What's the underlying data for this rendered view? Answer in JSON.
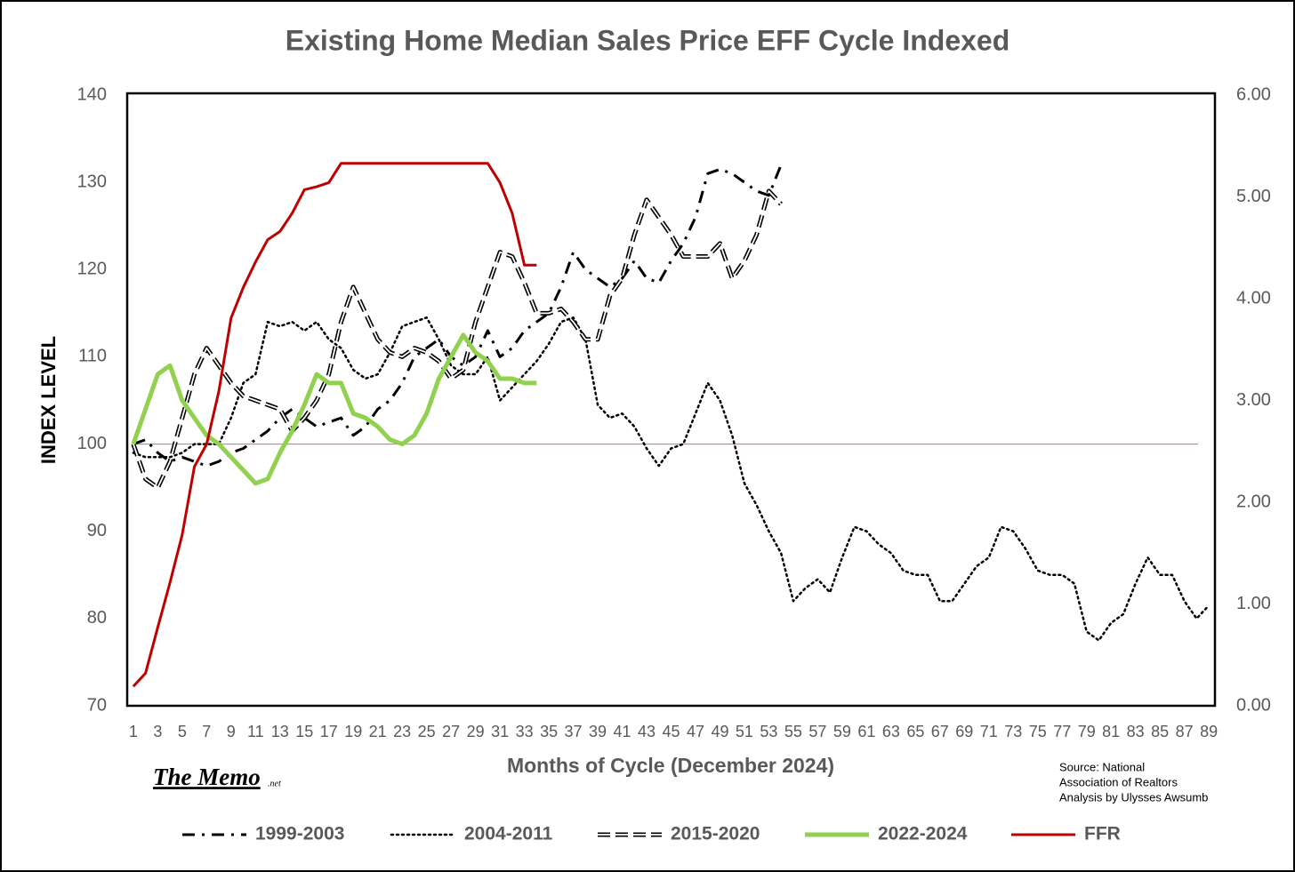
{
  "chart_data": {
    "type": "line",
    "title": "Existing Home Median Sales Price EFF Cycle Indexed",
    "xlabel": "Months of Cycle (December 2024)",
    "ylabel": "INDEX LEVEL",
    "x": [
      1,
      2,
      3,
      4,
      5,
      6,
      7,
      8,
      9,
      10,
      11,
      12,
      13,
      14,
      15,
      16,
      17,
      18,
      19,
      20,
      21,
      22,
      23,
      24,
      25,
      26,
      27,
      28,
      29,
      30,
      31,
      32,
      33,
      34,
      35,
      36,
      37,
      38,
      39,
      40,
      41,
      42,
      43,
      44,
      45,
      46,
      47,
      48,
      49,
      50,
      51,
      52,
      53,
      54,
      55,
      56,
      57,
      58,
      59,
      60,
      61,
      62,
      63,
      64,
      65,
      66,
      67,
      68,
      69,
      70,
      71,
      72,
      73,
      74,
      75,
      76,
      77,
      78,
      79,
      80,
      81,
      82,
      83,
      84,
      85,
      86,
      87,
      88,
      89
    ],
    "xlim": [
      0.5,
      89.5
    ],
    "xticks": [
      1,
      3,
      5,
      7,
      9,
      11,
      13,
      15,
      17,
      19,
      21,
      23,
      25,
      27,
      29,
      31,
      33,
      35,
      37,
      39,
      41,
      43,
      45,
      47,
      49,
      51,
      53,
      55,
      57,
      59,
      61,
      63,
      65,
      67,
      69,
      71,
      73,
      75,
      77,
      79,
      81,
      83,
      85,
      87,
      89
    ],
    "ylim": [
      70,
      140
    ],
    "yticks": [
      70,
      80,
      90,
      100,
      110,
      120,
      130,
      140
    ],
    "y2lim": [
      0,
      6
    ],
    "y2ticks": [
      {
        "value": 0,
        "label": "0.00"
      },
      {
        "value": 1,
        "label": "1.00"
      },
      {
        "value": 2,
        "label": "2.00"
      },
      {
        "value": 3,
        "label": "3.00"
      },
      {
        "value": 4,
        "label": "4.00"
      },
      {
        "value": 5,
        "label": "5.00"
      },
      {
        "value": 6,
        "label": "6.00"
      }
    ],
    "grid": false,
    "reference_line": {
      "value": 100,
      "color": "#e06666"
    },
    "legend": "bottom",
    "series": [
      {
        "name": "1999-2003",
        "color": "#000000",
        "style": "dashdot",
        "values": [
          100,
          100.5,
          99,
          98,
          98.5,
          98,
          97.5,
          98,
          99,
          99.5,
          100.5,
          101.5,
          103,
          104,
          103,
          102,
          102.5,
          103,
          101,
          102,
          104,
          105,
          107,
          110,
          111,
          112,
          110,
          109,
          110,
          113,
          110,
          111,
          113,
          114,
          115,
          118,
          122,
          120,
          119,
          118,
          119,
          121,
          119,
          118.5,
          121,
          123,
          126,
          131,
          131.5,
          131,
          130,
          129,
          128.5,
          132,
          null,
          null,
          null,
          null,
          null,
          null,
          null,
          null,
          null,
          null,
          null,
          null,
          null,
          null,
          null,
          null,
          null,
          null,
          null,
          null,
          null,
          null,
          null,
          null,
          null,
          null,
          null,
          null,
          null,
          null,
          null,
          null,
          null,
          null,
          null
        ]
      },
      {
        "name": "2004-2011",
        "color": "#000000",
        "style": "dotted",
        "values": [
          99,
          98.5,
          98.5,
          98.5,
          99,
          100,
          100,
          100,
          103,
          107,
          108,
          114,
          113.5,
          114,
          113,
          114,
          112,
          111,
          108.5,
          107.5,
          108,
          110.5,
          113.5,
          114,
          114.5,
          112,
          109,
          108,
          108,
          110,
          105,
          106.5,
          108,
          109.5,
          111.5,
          114,
          114.5,
          112,
          104.5,
          103,
          103.5,
          102,
          99.5,
          97.5,
          99.5,
          100,
          103.5,
          107,
          105,
          101,
          95.5,
          93,
          90,
          87.5,
          82,
          83.5,
          84.5,
          83,
          87,
          90.5,
          90,
          88.5,
          87.5,
          85.5,
          85,
          85,
          82,
          82,
          84,
          86,
          87,
          90.5,
          90,
          88,
          85.5,
          85,
          85,
          84,
          78.5,
          77.5,
          79.5,
          80.5,
          84,
          87,
          85,
          85,
          82,
          80,
          81.5
        ]
      },
      {
        "name": "2015-2020",
        "color": "#000000",
        "style": "double-dash",
        "values": [
          100,
          96,
          95,
          98,
          103,
          108,
          111,
          109,
          107,
          105.5,
          105,
          104.5,
          104,
          101.5,
          103,
          105,
          108,
          114,
          118,
          115,
          112,
          110.5,
          110,
          111,
          110.5,
          109.5,
          107.5,
          108.5,
          114,
          118,
          122,
          121.5,
          118.5,
          115,
          115,
          115.5,
          114,
          112,
          112,
          117,
          119,
          124,
          128,
          126,
          124,
          121.5,
          121.5,
          121.5,
          123,
          119,
          121,
          124,
          129,
          127.5,
          null,
          null,
          null,
          null,
          null,
          null,
          null,
          null,
          null,
          null,
          null,
          null,
          null,
          null,
          null,
          null,
          null,
          null,
          null,
          null,
          null,
          null,
          null,
          null,
          null,
          null,
          null,
          null,
          null,
          null,
          null,
          null,
          null,
          null,
          null
        ]
      },
      {
        "name": "2022-2024",
        "color": "#92d050",
        "style": "solid-thick",
        "values": [
          100,
          104,
          108,
          109,
          105,
          103,
          101,
          100,
          98.5,
          97,
          95.5,
          96,
          99,
          101.5,
          104.5,
          108,
          107,
          107,
          103.5,
          103,
          102,
          100.5,
          100,
          101,
          103.5,
          107.5,
          110,
          112.5,
          110.5,
          109.5,
          107.5,
          107.5,
          107,
          107,
          null,
          null,
          null,
          null,
          null,
          null,
          null,
          null,
          null,
          null,
          null,
          null,
          null,
          null,
          null,
          null,
          null,
          null,
          null,
          null,
          null,
          null,
          null,
          null,
          null,
          null,
          null,
          null,
          null,
          null,
          null,
          null,
          null,
          null,
          null,
          null,
          null,
          null,
          null,
          null,
          null,
          null,
          null,
          null,
          null,
          null,
          null,
          null,
          null,
          null,
          null,
          null,
          null,
          null,
          null
        ]
      },
      {
        "name": "FFR",
        "color": "#c00000",
        "style": "solid",
        "axis": "y2",
        "values": [
          0.19,
          0.32,
          0.77,
          1.21,
          1.68,
          2.35,
          2.57,
          3.09,
          3.81,
          4.11,
          4.36,
          4.58,
          4.66,
          4.84,
          5.07,
          5.1,
          5.14,
          5.33,
          5.33,
          5.33,
          5.33,
          5.33,
          5.33,
          5.33,
          5.33,
          5.33,
          5.33,
          5.33,
          5.33,
          5.33,
          5.14,
          4.84,
          4.33,
          4.33,
          null,
          null,
          null,
          null,
          null,
          null,
          null,
          null,
          null,
          null,
          null,
          null,
          null,
          null,
          null,
          null,
          null,
          null,
          null,
          null,
          null,
          null,
          null,
          null,
          null,
          null,
          null,
          null,
          null,
          null,
          null,
          null,
          null,
          null,
          null,
          null,
          null,
          null,
          null,
          null,
          null,
          null,
          null,
          null,
          null,
          null,
          null,
          null,
          null,
          null,
          null,
          null,
          null,
          null,
          null
        ]
      }
    ],
    "logo": {
      "text": "The Memo",
      "suffix": ".net"
    },
    "source": [
      "Source: National",
      "Association of Realtors",
      "Analysis by Ulysses Awsumb"
    ]
  }
}
